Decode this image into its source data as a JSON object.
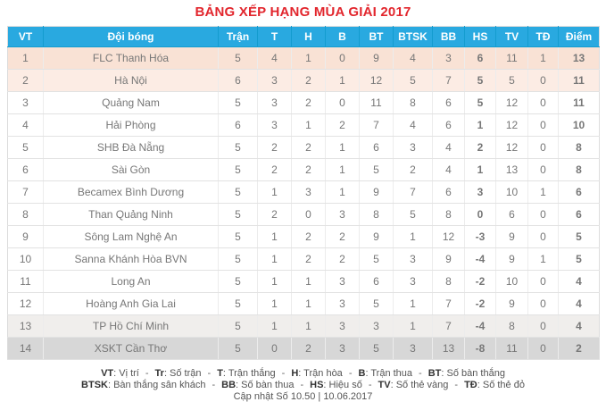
{
  "title": "BẢNG XẾP HẠNG MÙA GIẢI 2017",
  "colors": {
    "title_red": "#e2262d",
    "points_red": "#e2262d",
    "header_blue": "#29a9e0",
    "header_separator": "#149ccf",
    "row_leader_bg": "#f9e2d5",
    "row_second_bg": "#fcece4",
    "row_relegation1_bg": "#f0eeec",
    "row_relegation2_bg": "#d7d7d7"
  },
  "chart_data": {
    "type": "table",
    "title": "BẢNG XẾP HẠNG MÙA GIẢI 2017",
    "columns": [
      "VT",
      "Đội bóng",
      "Trận",
      "T",
      "H",
      "B",
      "BT",
      "BTSK",
      "BB",
      "HS",
      "TV",
      "TĐ",
      "Điểm"
    ],
    "rows": [
      [
        "1",
        "FLC Thanh Hóa",
        "5",
        "4",
        "1",
        "0",
        "9",
        "4",
        "3",
        "6",
        "11",
        "1",
        "13"
      ],
      [
        "2",
        "Hà Nội",
        "6",
        "3",
        "2",
        "1",
        "12",
        "5",
        "7",
        "5",
        "5",
        "0",
        "11"
      ],
      [
        "3",
        "Quảng Nam",
        "5",
        "3",
        "2",
        "0",
        "11",
        "8",
        "6",
        "5",
        "12",
        "0",
        "11"
      ],
      [
        "4",
        "Hải Phòng",
        "6",
        "3",
        "1",
        "2",
        "7",
        "4",
        "6",
        "1",
        "12",
        "0",
        "10"
      ],
      [
        "5",
        "SHB Đà Nẵng",
        "5",
        "2",
        "2",
        "1",
        "6",
        "3",
        "4",
        "2",
        "12",
        "0",
        "8"
      ],
      [
        "6",
        "Sài Gòn",
        "5",
        "2",
        "2",
        "1",
        "5",
        "2",
        "4",
        "1",
        "13",
        "0",
        "8"
      ],
      [
        "7",
        "Becamex Bình Dương",
        "5",
        "1",
        "3",
        "1",
        "9",
        "7",
        "6",
        "3",
        "10",
        "1",
        "6"
      ],
      [
        "8",
        "Than Quảng Ninh",
        "5",
        "2",
        "0",
        "3",
        "8",
        "5",
        "8",
        "0",
        "6",
        "0",
        "6"
      ],
      [
        "9",
        "Sông Lam Nghệ An",
        "5",
        "1",
        "2",
        "2",
        "9",
        "1",
        "12",
        "-3",
        "9",
        "0",
        "5"
      ],
      [
        "10",
        "Sanna Khánh Hòa BVN",
        "5",
        "1",
        "2",
        "2",
        "5",
        "3",
        "9",
        "-4",
        "9",
        "1",
        "5"
      ],
      [
        "11",
        "Long An",
        "5",
        "1",
        "1",
        "3",
        "6",
        "3",
        "8",
        "-2",
        "10",
        "0",
        "4"
      ],
      [
        "12",
        "Hoàng Anh Gia Lai",
        "5",
        "1",
        "1",
        "3",
        "5",
        "1",
        "7",
        "-2",
        "9",
        "0",
        "4"
      ],
      [
        "13",
        "TP Hồ Chí Minh",
        "5",
        "1",
        "1",
        "3",
        "3",
        "1",
        "7",
        "-4",
        "8",
        "0",
        "4"
      ],
      [
        "14",
        "XSKT Cần Thơ",
        "5",
        "0",
        "2",
        "3",
        "5",
        "3",
        "13",
        "-8",
        "11",
        "0",
        "2"
      ]
    ],
    "row_highlights": {
      "1": "#f9e2d5",
      "2": "#fcece4",
      "13": "#f0eeec",
      "14": "#d7d7d7"
    },
    "layout_hints": {
      "points_column_color": "#e2262d",
      "hs_column_bold": true,
      "grid": true
    }
  },
  "legend": {
    "separator": "-",
    "lines": [
      [
        {
          "abbr": "VT",
          "desc": "Vị trí"
        },
        {
          "abbr": "Tr",
          "desc": "Số trận"
        },
        {
          "abbr": "T",
          "desc": "Trận thắng"
        },
        {
          "abbr": "H",
          "desc": "Trận hòa"
        },
        {
          "abbr": "B",
          "desc": "Trận thua"
        },
        {
          "abbr": "BT",
          "desc": "Số bàn thắng"
        }
      ],
      [
        {
          "abbr": "BTSK",
          "desc": "Bàn thắng sân khách"
        },
        {
          "abbr": "BB",
          "desc": "Số bàn thua"
        },
        {
          "abbr": "HS",
          "desc": "Hiệu số"
        },
        {
          "abbr": "TV",
          "desc": "Số thẻ vàng"
        },
        {
          "abbr": "TĐ",
          "desc": "Số thẻ đỏ"
        }
      ]
    ],
    "update_line": "Cập nhật Số 10.50 | 10.06.2017"
  }
}
